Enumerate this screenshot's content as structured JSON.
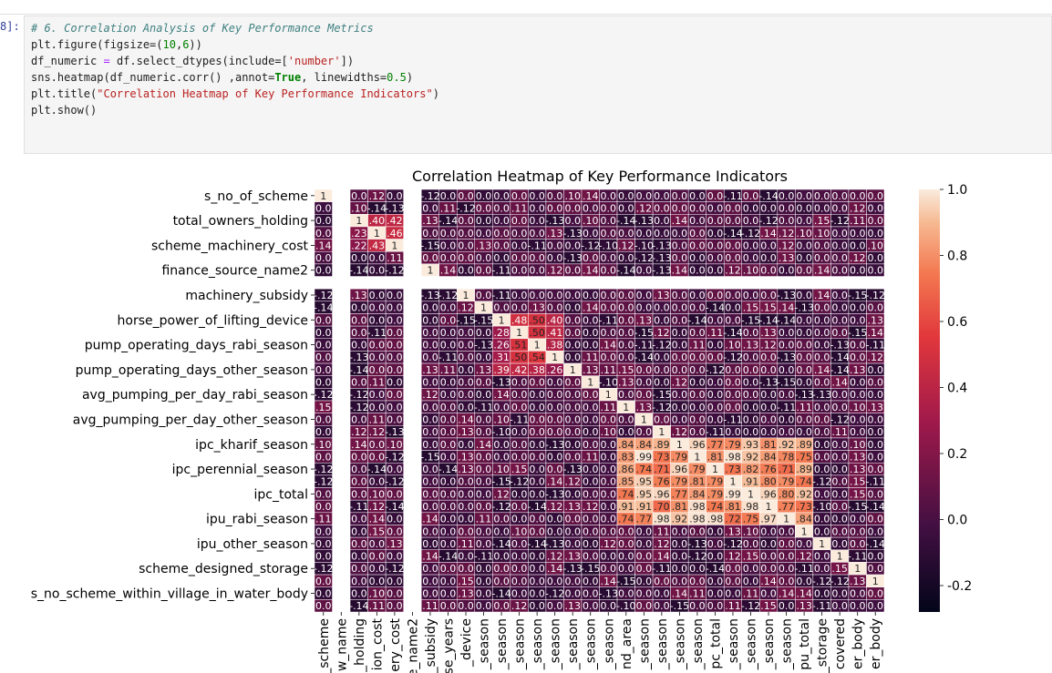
{
  "notebook": {
    "prompt": "8]:",
    "code_lines": [
      [
        {
          "t": "# 6. Correlation Analysis of Key Performance Metrics",
          "c": "c-com"
        }
      ],
      [
        {
          "t": "plt.figure(figsize=("
        },
        {
          "t": "10",
          "c": "c-num"
        },
        {
          "t": ","
        },
        {
          "t": "6",
          "c": "c-num"
        },
        {
          "t": "))"
        }
      ],
      [
        {
          "t": "df_numeric "
        },
        {
          "t": "=",
          "c": "c-op"
        },
        {
          "t": " df.select_dtypes(include=["
        },
        {
          "t": "'number'",
          "c": "c-str"
        },
        {
          "t": "])"
        }
      ],
      [
        {
          "t": "sns.heatmap(df_numeric.corr() ,annot="
        },
        {
          "t": "True",
          "c": "c-kw"
        },
        {
          "t": ", linewidths="
        },
        {
          "t": "0.5",
          "c": "c-num"
        },
        {
          "t": ")"
        }
      ],
      [
        {
          "t": "plt.title("
        },
        {
          "t": "\"Correlation Heatmap of Key Performance Indicators\"",
          "c": "c-str"
        },
        {
          "t": ")"
        }
      ],
      [
        {
          "t": "plt.show()"
        }
      ]
    ]
  },
  "chart_data": {
    "type": "heatmap",
    "title": "Correlation Heatmap of Key Performance Indicators",
    "y_tick_labels": [
      "s_no_of_scheme",
      "total_owners_holding",
      "scheme_machinery_cost",
      "finance_source_name2",
      "machinery_subsidy",
      "horse_power_of_lifting_device",
      "pump_operating_days_rabi_season",
      "pump_operating_days_other_season",
      "avg_pumping_per_day_rabi_season",
      "avg_pumping_per_day_other_season",
      "ipc_kharif_season",
      "ipc_perennial_season",
      "ipc_total",
      "ipu_rabi_season",
      "ipu_other_season",
      "scheme_designed_storage",
      "s_no_scheme_within_village_in_water_body"
    ],
    "x_tick_labels": [
      "_scheme",
      "w_name",
      "_holding",
      "ion_cost",
      "ery_cost",
      "ce_name2",
      "_subsidy",
      "se_years",
      "_device",
      "_season",
      "_season",
      "_season",
      "_season",
      "_season",
      "_season",
      "_season",
      "_season",
      "nd_area",
      "_season",
      "_season",
      "_season",
      "_season",
      "pc_total",
      "_season",
      "_season",
      "_season",
      "_season",
      "pu_total",
      "_storage",
      "covered",
      "er_body",
      "er_body"
    ],
    "colorbar_ticks": [
      1.0,
      0.8,
      0.6,
      0.4,
      0.2,
      0.0,
      -0.2
    ],
    "colorbar_tick_labels": [
      "1.0",
      "0.8",
      "0.6",
      "0.4",
      "0.2",
      "0.0",
      "-0.2"
    ],
    "vmin": -0.28,
    "vmax": 1.0,
    "n_rows": 34,
    "n_cols": 32,
    "blank_rows": [
      7
    ],
    "blank_cols": [
      1,
      5
    ],
    "blocks": [
      {
        "r": [
          20,
          26
        ],
        "c": [
          17,
          27
        ],
        "v": 0.85
      },
      {
        "r": [
          22,
          25
        ],
        "c": [
          18,
          23
        ],
        "v": 0.75
      },
      {
        "r": [
          10,
          14
        ],
        "c": [
          10,
          13
        ],
        "v": 0.4
      },
      {
        "r": [
          2,
          4
        ],
        "c": [
          2,
          4
        ],
        "v": 0.35
      }
    ],
    "colormap": "rocket",
    "annot": true,
    "linewidths": 0.5
  }
}
